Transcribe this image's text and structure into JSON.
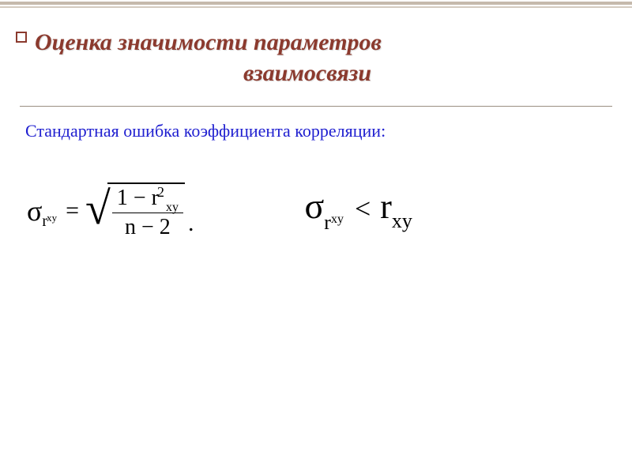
{
  "colors": {
    "title_color": "#8b3a2e",
    "subtitle_color": "#2020d0",
    "rule_color": "#9a8f82",
    "topbar_color": "#c5b9ac",
    "background": "#ffffff",
    "formula_color": "#000000"
  },
  "typography": {
    "title_fontsize": 30,
    "title_style": "italic bold",
    "subtitle_fontsize": 22,
    "formula_fontsize": 30,
    "font_family": "Times New Roman"
  },
  "title": {
    "line1": "Оценка значимости параметров",
    "line2": "взаимосвязи"
  },
  "subtitle": "Стандартная ошибка коэффициента корреляции:",
  "formula1": {
    "lhs_sigma": "σ",
    "lhs_sub_r": "r",
    "lhs_sub_xy": "xy",
    "equals": "=",
    "radical": "√",
    "numerator_one": "1",
    "numerator_minus": "−",
    "numerator_r": "r",
    "numerator_r_sub": "xy",
    "numerator_r_sup": "2",
    "denominator_n": "n",
    "denominator_minus": "−",
    "denominator_two": "2",
    "period": "."
  },
  "formula2": {
    "sigma": "σ",
    "sub_r": "r",
    "sub_xy": "xy",
    "lt": "<",
    "r": "r",
    "r_sub": "xy"
  }
}
